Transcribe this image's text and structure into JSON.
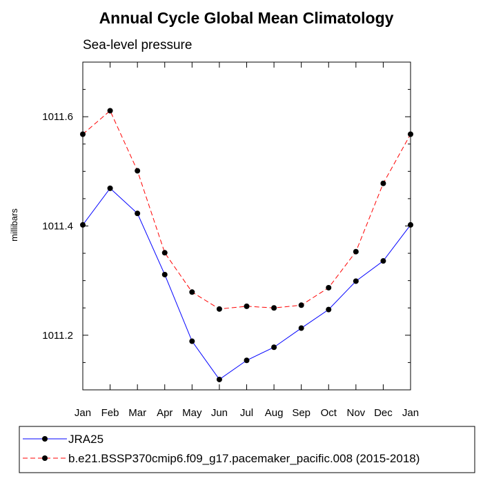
{
  "chart_data": {
    "type": "line",
    "title": "Annual Cycle Global Mean Climatology",
    "subtitle": "Sea-level pressure",
    "xlabel": "",
    "ylabel": "millibars",
    "categories": [
      "Jan",
      "Feb",
      "Mar",
      "Apr",
      "May",
      "Jun",
      "Jul",
      "Aug",
      "Sep",
      "Oct",
      "Nov",
      "Dec",
      "Jan"
    ],
    "yticks": [
      1011.2,
      1011.4,
      1011.6
    ],
    "ytick_labels": [
      "1011.2",
      "1011.4",
      "1011.6"
    ],
    "ylim": [
      1011.1,
      1011.7
    ],
    "grid": false,
    "legend_placement": "bottom-left",
    "series": [
      {
        "name": "JRA25",
        "color": "#0000ff",
        "line_style": "solid",
        "marker": "filled-circle",
        "values": [
          1011.402,
          1011.469,
          1011.423,
          1011.311,
          1011.189,
          1011.119,
          1011.154,
          1011.178,
          1011.213,
          1011.247,
          1011.299,
          1011.336,
          1011.402
        ]
      },
      {
        "name": "b.e21.BSSP370cmip6.f09_g17.pacemaker_pacific.008 (2015-2018)",
        "color": "#ff0000",
        "line_style": "dashed",
        "marker": "filled-circle",
        "values": [
          1011.568,
          1011.611,
          1011.501,
          1011.351,
          1011.279,
          1011.248,
          1011.253,
          1011.25,
          1011.255,
          1011.287,
          1011.353,
          1011.478,
          1011.568
        ]
      }
    ]
  }
}
